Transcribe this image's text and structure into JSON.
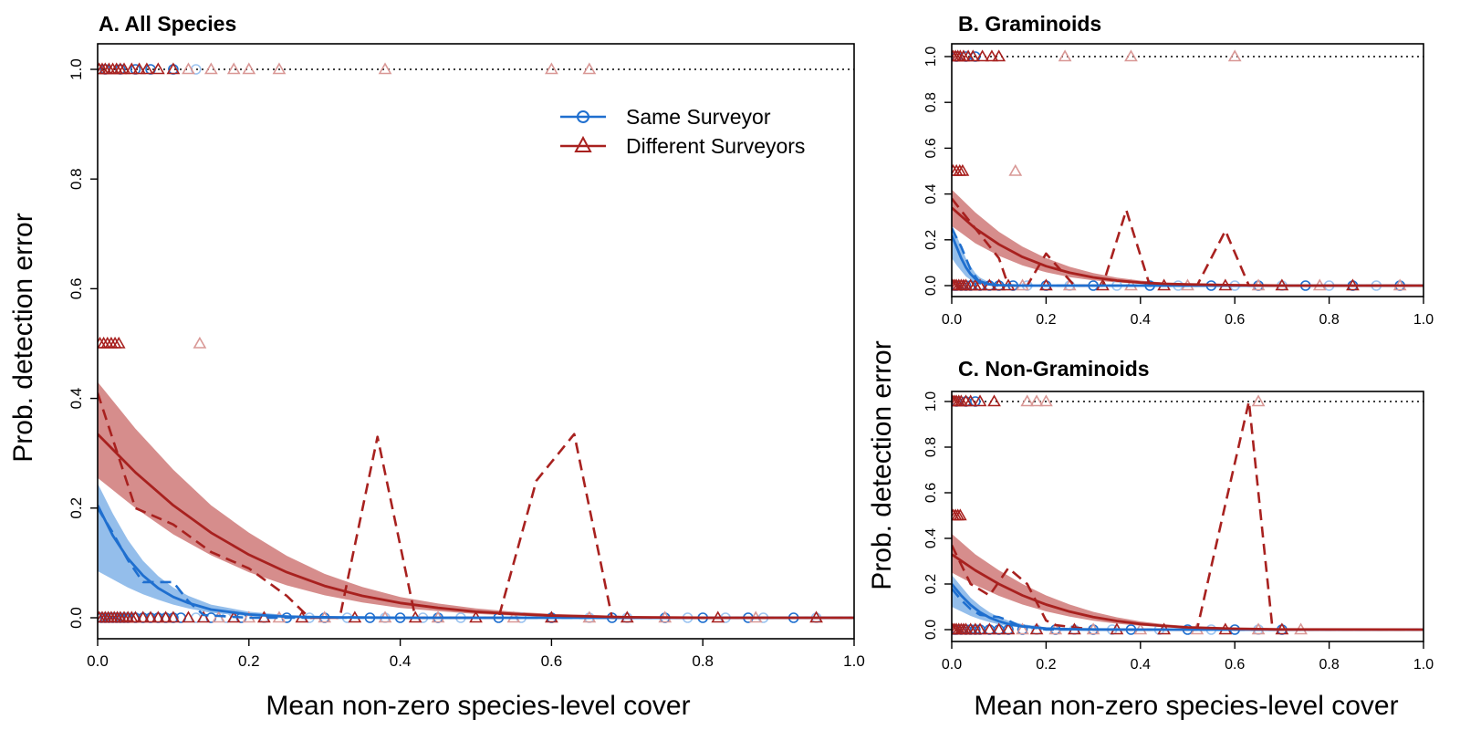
{
  "figure": {
    "ylabel_left": "Prob. detection error",
    "ylabel_right": "Prob. detection error",
    "xlabel_left": "Mean non-zero species-level cover",
    "xlabel_right": "Mean non-zero species-level cover",
    "legend": {
      "placement": "top-right of panel A",
      "same": "Same Surveyor",
      "different": "Different Surveyors"
    },
    "colors": {
      "same": "#1f6fcf",
      "same_band": "#5b9be0",
      "same_light": "#9cc4f0",
      "different": "#a8211f",
      "different_band": "#c0504e",
      "different_light": "#d99896"
    }
  },
  "chart_data": [
    {
      "panel": "A",
      "type": "line",
      "title": "A. All Species",
      "xlim": [
        0,
        1
      ],
      "ylim": [
        0,
        1
      ],
      "xticks": [
        "0.0",
        "0.2",
        "0.4",
        "0.6",
        "0.8",
        "1.0"
      ],
      "yticks": [
        "0.0",
        "0.2",
        "0.4",
        "0.6",
        "0.8",
        "1.0"
      ],
      "reference_line_y": 1.0,
      "series": [
        {
          "name": "Same Surveyor",
          "fit": {
            "x": [
              0,
              0.02,
              0.04,
              0.06,
              0.08,
              0.1,
              0.12,
              0.15,
              0.2,
              0.25,
              0.3,
              0.4,
              0.5,
              0.6,
              0.7,
              0.8,
              0.9,
              1.0
            ],
            "y": [
              0.205,
              0.15,
              0.108,
              0.077,
              0.054,
              0.038,
              0.027,
              0.015,
              0.006,
              0.002,
              0.001,
              0,
              0,
              0,
              0,
              0,
              0,
              0
            ]
          },
          "band_upper": [
            0.245,
            0.19,
            0.142,
            0.104,
            0.076,
            0.055,
            0.04,
            0.024,
            0.011,
            0.005,
            0.002,
            0,
            0,
            0,
            0,
            0,
            0,
            0
          ],
          "band_lower": [
            0.085,
            0.07,
            0.055,
            0.043,
            0.033,
            0.024,
            0.017,
            0.009,
            0.003,
            0.001,
            0,
            0,
            0,
            0,
            0,
            0,
            0,
            0
          ],
          "binned": {
            "x": [
              0,
              0.02,
              0.04,
              0.06,
              0.08,
              0.1,
              0.12,
              0.14,
              0.2,
              0.3,
              0.5,
              1.0
            ],
            "y": [
              0.2,
              0.155,
              0.105,
              0.065,
              0.065,
              0.065,
              0.03,
              0.005,
              0,
              0,
              0,
              0
            ]
          },
          "points_zero": [
            0.005,
            0.01,
            0.015,
            0.02,
            0.025,
            0.03,
            0.035,
            0.04,
            0.05,
            0.06,
            0.07,
            0.08,
            0.09,
            0.1,
            0.11,
            0.13,
            0.15,
            0.17,
            0.19,
            0.22,
            0.25,
            0.28,
            0.3,
            0.33,
            0.36,
            0.38,
            0.4,
            0.43,
            0.45,
            0.48,
            0.53,
            0.56,
            0.6,
            0.65,
            0.68,
            0.7,
            0.75,
            0.78,
            0.8,
            0.83,
            0.86,
            0.88,
            0.92,
            0.95
          ],
          "points_one": [
            0.01,
            0.03,
            0.05,
            0.07,
            0.1,
            0.13
          ]
        },
        {
          "name": "Different Surveyors",
          "fit": {
            "x": [
              0,
              0.05,
              0.1,
              0.15,
              0.2,
              0.25,
              0.3,
              0.35,
              0.4,
              0.45,
              0.5,
              0.55,
              0.6,
              0.7,
              0.8,
              0.9,
              1.0
            ],
            "y": [
              0.335,
              0.265,
              0.205,
              0.155,
              0.115,
              0.083,
              0.058,
              0.04,
              0.027,
              0.018,
              0.011,
              0.007,
              0.004,
              0.001,
              0,
              0,
              0
            ]
          },
          "band_upper": [
            0.43,
            0.345,
            0.27,
            0.205,
            0.155,
            0.113,
            0.08,
            0.056,
            0.038,
            0.026,
            0.017,
            0.011,
            0.007,
            0.003,
            0.001,
            0,
            0
          ],
          "band_lower": [
            0.255,
            0.2,
            0.152,
            0.114,
            0.083,
            0.059,
            0.041,
            0.028,
            0.018,
            0.012,
            0.007,
            0.004,
            0.002,
            0.001,
            0,
            0,
            0
          ],
          "binned": {
            "x": [
              0,
              0.05,
              0.1,
              0.15,
              0.2,
              0.25,
              0.28,
              0.32,
              0.37,
              0.42,
              0.53,
              0.58,
              0.63,
              0.68,
              1.0
            ],
            "y": [
              0.41,
              0.2,
              0.17,
              0.12,
              0.09,
              0.04,
              0.0,
              0.0,
              0.33,
              0.0,
              0.0,
              0.25,
              0.335,
              0.0,
              0.0
            ]
          },
          "points_zero": [
            0.002,
            0.006,
            0.01,
            0.014,
            0.018,
            0.022,
            0.026,
            0.03,
            0.035,
            0.04,
            0.045,
            0.05,
            0.06,
            0.07,
            0.08,
            0.09,
            0.1,
            0.12,
            0.14,
            0.16,
            0.18,
            0.2,
            0.22,
            0.24,
            0.27,
            0.3,
            0.34,
            0.38,
            0.42,
            0.45,
            0.5,
            0.55,
            0.6,
            0.65,
            0.7,
            0.75,
            0.82,
            0.87,
            0.95
          ],
          "points_half": [
            0.003,
            0.008,
            0.013,
            0.018,
            0.023,
            0.028,
            0.135
          ],
          "points_one": [
            0.002,
            0.006,
            0.01,
            0.015,
            0.02,
            0.025,
            0.03,
            0.035,
            0.045,
            0.055,
            0.065,
            0.08,
            0.1,
            0.12,
            0.15,
            0.18,
            0.2,
            0.24,
            0.38,
            0.6,
            0.65
          ]
        }
      ]
    },
    {
      "panel": "B",
      "type": "line",
      "title": "B. Graminoids",
      "xlim": [
        0,
        1
      ],
      "ylim": [
        0,
        1
      ],
      "xticks": [
        "0.0",
        "0.2",
        "0.4",
        "0.6",
        "0.8",
        "1.0"
      ],
      "yticks": [
        "0.0",
        "0.2",
        "0.4",
        "0.6",
        "0.8",
        "1.0"
      ],
      "reference_line_y": 1.0,
      "series": [
        {
          "name": "Same Surveyor",
          "fit": {
            "x": [
              0,
              0.01,
              0.02,
              0.03,
              0.04,
              0.05,
              0.06,
              0.08,
              0.1,
              0.15,
              0.2,
              1.0
            ],
            "y": [
              0.22,
              0.17,
              0.12,
              0.08,
              0.05,
              0.03,
              0.018,
              0.006,
              0.002,
              0,
              0,
              0
            ]
          },
          "band_upper": [
            0.27,
            0.22,
            0.17,
            0.12,
            0.085,
            0.055,
            0.035,
            0.014,
            0.005,
            0.001,
            0,
            0
          ],
          "band_lower": [
            0.12,
            0.09,
            0.065,
            0.04,
            0.025,
            0.014,
            0.008,
            0.002,
            0,
            0,
            0,
            0
          ],
          "binned": {
            "x": [
              0,
              0.02,
              0.04,
              0.06,
              0.1,
              1.0
            ],
            "y": [
              0.25,
              0.17,
              0.07,
              0.01,
              0.0,
              0.0
            ]
          },
          "points_zero": [
            0.005,
            0.01,
            0.02,
            0.03,
            0.04,
            0.06,
            0.08,
            0.1,
            0.13,
            0.16,
            0.2,
            0.25,
            0.3,
            0.35,
            0.42,
            0.48,
            0.55,
            0.6,
            0.65,
            0.7,
            0.75,
            0.8,
            0.85,
            0.9,
            0.95
          ],
          "points_one": [
            0.01,
            0.03,
            0.05
          ]
        },
        {
          "name": "Different Surveyors",
          "fit": {
            "x": [
              0,
              0.05,
              0.1,
              0.15,
              0.2,
              0.25,
              0.3,
              0.35,
              0.4,
              0.45,
              0.5,
              0.6,
              0.7,
              1.0
            ],
            "y": [
              0.34,
              0.25,
              0.18,
              0.125,
              0.085,
              0.056,
              0.036,
              0.022,
              0.013,
              0.008,
              0.005,
              0.002,
              0,
              0
            ]
          },
          "band_upper": [
            0.42,
            0.32,
            0.235,
            0.17,
            0.12,
            0.082,
            0.055,
            0.035,
            0.022,
            0.013,
            0.008,
            0.003,
            0.001,
            0
          ],
          "band_lower": [
            0.26,
            0.185,
            0.13,
            0.088,
            0.058,
            0.037,
            0.023,
            0.014,
            0.008,
            0.005,
            0.003,
            0.001,
            0,
            0
          ],
          "binned": {
            "x": [
              0,
              0.05,
              0.1,
              0.12,
              0.16,
              0.2,
              0.26,
              0.32,
              0.37,
              0.42,
              0.52,
              0.58,
              0.63,
              1.0
            ],
            "y": [
              0.38,
              0.25,
              0.12,
              0.0,
              0.0,
              0.14,
              0.0,
              0.0,
              0.33,
              0.0,
              0.0,
              0.24,
              0.0,
              0.0
            ]
          },
          "points_zero": [
            0.002,
            0.006,
            0.01,
            0.015,
            0.02,
            0.025,
            0.03,
            0.04,
            0.05,
            0.06,
            0.08,
            0.1,
            0.12,
            0.15,
            0.2,
            0.25,
            0.32,
            0.38,
            0.45,
            0.5,
            0.58,
            0.65,
            0.7,
            0.78,
            0.85,
            0.95
          ],
          "points_half": [
            0.003,
            0.01,
            0.017,
            0.023,
            0.135
          ],
          "points_one": [
            0.003,
            0.008,
            0.013,
            0.018,
            0.025,
            0.035,
            0.045,
            0.065,
            0.085,
            0.1,
            0.24,
            0.38,
            0.6
          ]
        }
      ]
    },
    {
      "panel": "C",
      "type": "line",
      "title": "C. Non-Graminoids",
      "xlim": [
        0,
        1
      ],
      "ylim": [
        0,
        1
      ],
      "xticks": [
        "0.0",
        "0.2",
        "0.4",
        "0.6",
        "0.8",
        "1.0"
      ],
      "yticks": [
        "0.0",
        "0.2",
        "0.4",
        "0.6",
        "0.8",
        "1.0"
      ],
      "reference_line_y": 1.0,
      "series": [
        {
          "name": "Same Surveyor",
          "fit": {
            "x": [
              0,
              0.02,
              0.04,
              0.06,
              0.08,
              0.1,
              0.12,
              0.15,
              0.2,
              0.25,
              0.3,
              0.4,
              1.0
            ],
            "y": [
              0.2,
              0.15,
              0.108,
              0.076,
              0.053,
              0.037,
              0.025,
              0.014,
              0.005,
              0.002,
              0.001,
              0,
              0
            ]
          },
          "band_upper": [
            0.24,
            0.19,
            0.14,
            0.105,
            0.076,
            0.055,
            0.04,
            0.024,
            0.01,
            0.004,
            0.002,
            0,
            0
          ],
          "band_lower": [
            0.1,
            0.08,
            0.06,
            0.045,
            0.033,
            0.023,
            0.015,
            0.008,
            0.003,
            0.001,
            0,
            0,
            0
          ],
          "binned": {
            "x": [
              0,
              0.02,
              0.04,
              0.06,
              0.08,
              0.1,
              0.12,
              0.14,
              0.2,
              1.0
            ],
            "y": [
              0.18,
              0.13,
              0.09,
              0.065,
              0.06,
              0.055,
              0.04,
              0.02,
              0.0,
              0.0
            ]
          },
          "points_zero": [
            0.005,
            0.01,
            0.02,
            0.03,
            0.04,
            0.05,
            0.06,
            0.08,
            0.1,
            0.12,
            0.15,
            0.18,
            0.22,
            0.26,
            0.3,
            0.34,
            0.38,
            0.44,
            0.5,
            0.55,
            0.6,
            0.65,
            0.7
          ],
          "points_one": [
            0.01,
            0.03,
            0.05
          ]
        },
        {
          "name": "Different Surveyors",
          "fit": {
            "x": [
              0,
              0.05,
              0.1,
              0.15,
              0.2,
              0.25,
              0.3,
              0.35,
              0.4,
              0.45,
              0.5,
              0.6,
              0.7,
              1.0
            ],
            "y": [
              0.33,
              0.26,
              0.2,
              0.15,
              0.11,
              0.079,
              0.055,
              0.038,
              0.025,
              0.016,
              0.01,
              0.004,
              0.001,
              0
            ]
          },
          "band_upper": [
            0.42,
            0.33,
            0.26,
            0.2,
            0.15,
            0.11,
            0.078,
            0.054,
            0.036,
            0.024,
            0.015,
            0.006,
            0.002,
            0
          ],
          "band_lower": [
            0.25,
            0.195,
            0.148,
            0.11,
            0.08,
            0.057,
            0.039,
            0.026,
            0.017,
            0.011,
            0.007,
            0.002,
            0,
            0
          ],
          "binned": {
            "x": [
              0,
              0.04,
              0.08,
              0.12,
              0.16,
              0.2,
              0.22,
              0.3,
              0.4,
              0.52,
              0.58,
              0.63,
              0.68,
              1.0
            ],
            "y": [
              0.37,
              0.2,
              0.15,
              0.27,
              0.2,
              0.04,
              0.02,
              0.0,
              0.0,
              0.0,
              0.55,
              1.0,
              0.0,
              0.0
            ]
          },
          "points_zero": [
            0.002,
            0.006,
            0.01,
            0.015,
            0.02,
            0.025,
            0.03,
            0.04,
            0.05,
            0.06,
            0.08,
            0.1,
            0.12,
            0.15,
            0.18,
            0.22,
            0.26,
            0.3,
            0.35,
            0.4,
            0.45,
            0.52,
            0.58,
            0.65,
            0.7,
            0.74
          ],
          "points_half": [
            0.003,
            0.008,
            0.013,
            0.018
          ],
          "points_one": [
            0.002,
            0.006,
            0.01,
            0.015,
            0.02,
            0.03,
            0.04,
            0.06,
            0.09,
            0.16,
            0.18,
            0.2,
            0.65
          ]
        }
      ]
    }
  ]
}
